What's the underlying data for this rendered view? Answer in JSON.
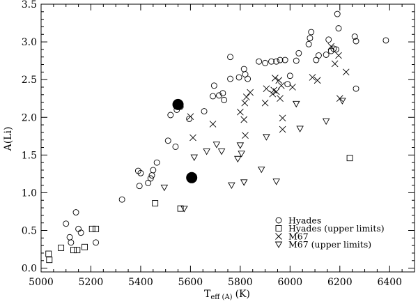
{
  "chart_data": {
    "type": "scatter",
    "xlabel": "T",
    "xlabel_sub": "eff (A)",
    "xlabel_unit": "(K)",
    "ylabel": "A(Li)",
    "xlim": [
      5000,
      6500
    ],
    "ylim": [
      -0.05,
      3.5
    ],
    "xticks_major": [
      5000,
      5200,
      5400,
      5600,
      5800,
      6000,
      6200,
      6400
    ],
    "xticks_minor_step": 50,
    "yticks_major": [
      0.0,
      0.5,
      1.0,
      1.5,
      2.0,
      2.5,
      3.0,
      3.5
    ],
    "yticks_minor_step": 0.1,
    "grid": false,
    "legend_position": "bottom-right",
    "series": [
      {
        "name": "Hyades",
        "marker": "circle-open",
        "points": [
          [
            5100,
            0.59
          ],
          [
            5115,
            0.41
          ],
          [
            5120,
            0.34
          ],
          [
            5140,
            0.74
          ],
          [
            5150,
            0.52
          ],
          [
            5160,
            0.47
          ],
          [
            5220,
            0.34
          ],
          [
            5325,
            0.91
          ],
          [
            5390,
            1.29
          ],
          [
            5395,
            1.09
          ],
          [
            5400,
            1.26
          ],
          [
            5430,
            1.13
          ],
          [
            5440,
            1.19
          ],
          [
            5445,
            1.23
          ],
          [
            5450,
            1.3
          ],
          [
            5465,
            1.4
          ],
          [
            5510,
            1.69
          ],
          [
            5520,
            2.03
          ],
          [
            5540,
            1.61
          ],
          [
            5545,
            2.1
          ],
          [
            5560,
            2.14
          ],
          [
            5595,
            1.98
          ],
          [
            5655,
            2.08
          ],
          [
            5690,
            2.28
          ],
          [
            5695,
            2.42
          ],
          [
            5715,
            2.29
          ],
          [
            5730,
            2.32
          ],
          [
            5735,
            2.23
          ],
          [
            5760,
            2.51
          ],
          [
            5760,
            2.8
          ],
          [
            5795,
            2.53
          ],
          [
            5815,
            2.64
          ],
          [
            5820,
            2.57
          ],
          [
            5830,
            2.51
          ],
          [
            5875,
            2.74
          ],
          [
            5900,
            2.72
          ],
          [
            5925,
            2.74
          ],
          [
            5945,
            2.74
          ],
          [
            5960,
            2.76
          ],
          [
            5980,
            2.76
          ],
          [
            5990,
            2.44
          ],
          [
            6000,
            2.55
          ],
          [
            6025,
            2.75
          ],
          [
            6035,
            2.85
          ],
          [
            6075,
            2.97
          ],
          [
            6080,
            3.05
          ],
          [
            6085,
            3.13
          ],
          [
            6105,
            2.76
          ],
          [
            6115,
            2.82
          ],
          [
            6145,
            2.83
          ],
          [
            6155,
            3.03
          ],
          [
            6165,
            2.88
          ],
          [
            6175,
            2.91
          ],
          [
            6185,
            2.9
          ],
          [
            6190,
            3.37
          ],
          [
            6195,
            3.18
          ],
          [
            6260,
            3.07
          ],
          [
            6265,
            3.01
          ],
          [
            6265,
            2.38
          ],
          [
            6385,
            3.02
          ]
        ]
      },
      {
        "name": "Hyades (upper limits)",
        "marker": "square-open",
        "points": [
          [
            5030,
            0.19
          ],
          [
            5033,
            0.11
          ],
          [
            5080,
            0.27
          ],
          [
            5130,
            0.24
          ],
          [
            5145,
            0.24
          ],
          [
            5175,
            0.28
          ],
          [
            5205,
            0.52
          ],
          [
            5220,
            0.52
          ],
          [
            5458,
            0.86
          ],
          [
            5560,
            0.79
          ],
          [
            6240,
            1.46
          ]
        ]
      },
      {
        "name": "M67",
        "marker": "x",
        "points": [
          [
            5600,
            2.01
          ],
          [
            5610,
            1.73
          ],
          [
            5690,
            1.91
          ],
          [
            5800,
            2.07
          ],
          [
            5815,
            1.97
          ],
          [
            5818,
            2.19
          ],
          [
            5820,
            1.76
          ],
          [
            5825,
            2.27
          ],
          [
            5840,
            2.33
          ],
          [
            5900,
            2.19
          ],
          [
            5905,
            2.38
          ],
          [
            5930,
            2.31
          ],
          [
            5935,
            2.36
          ],
          [
            5940,
            2.52
          ],
          [
            5945,
            2.34
          ],
          [
            5955,
            2.49
          ],
          [
            5960,
            2.25
          ],
          [
            5965,
            2.42
          ],
          [
            5970,
            1.99
          ],
          [
            5970,
            1.84
          ],
          [
            6010,
            2.4
          ],
          [
            6090,
            2.53
          ],
          [
            6110,
            2.49
          ],
          [
            6165,
            2.94
          ],
          [
            6180,
            2.71
          ],
          [
            6195,
            2.82
          ],
          [
            6200,
            2.25
          ],
          [
            6225,
            2.6
          ]
        ]
      },
      {
        "name": "M67 (upper limits)",
        "marker": "triangle-down-open",
        "points": [
          [
            5495,
            1.07
          ],
          [
            5575,
            0.79
          ],
          [
            5615,
            1.47
          ],
          [
            5665,
            1.55
          ],
          [
            5705,
            1.64
          ],
          [
            5725,
            1.55
          ],
          [
            5765,
            1.1
          ],
          [
            5790,
            1.45
          ],
          [
            5800,
            1.63
          ],
          [
            5805,
            1.52
          ],
          [
            5815,
            1.14
          ],
          [
            5885,
            1.31
          ],
          [
            5905,
            1.74
          ],
          [
            5945,
            1.15
          ],
          [
            6025,
            2.18
          ],
          [
            6040,
            1.85
          ],
          [
            6145,
            1.95
          ],
          [
            6210,
            2.22
          ]
        ]
      },
      {
        "name": "",
        "marker": "circle-filled",
        "points": [
          [
            5550,
            2.17
          ],
          [
            5605,
            1.2
          ]
        ]
      }
    ]
  }
}
